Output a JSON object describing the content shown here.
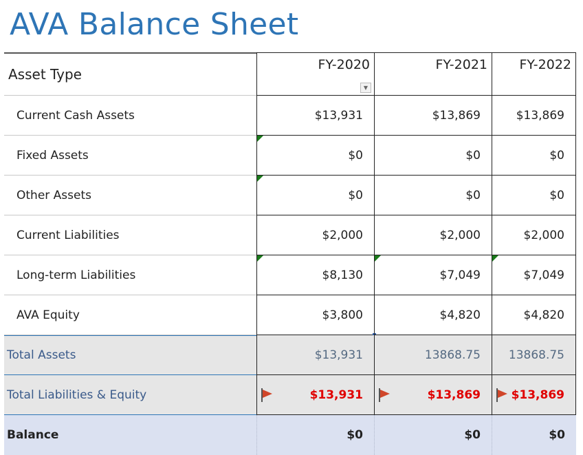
{
  "title": "AVA Balance Sheet",
  "header": {
    "label": "Asset Type",
    "years": [
      "FY-2020",
      "FY-2021",
      "FY-2022"
    ]
  },
  "rows": [
    {
      "label": "Current Cash Assets",
      "values": [
        "$13,931",
        "$13,869",
        "$13,869"
      ]
    },
    {
      "label": "Fixed Assets",
      "values": [
        "$0",
        "$0",
        "$0"
      ]
    },
    {
      "label": "Other Assets",
      "values": [
        "$0",
        "$0",
        "$0"
      ]
    },
    {
      "label": "Current Liabilities",
      "values": [
        "$2,000",
        "$2,000",
        "$2,000"
      ]
    },
    {
      "label": "Long-term Liabilities",
      "values": [
        "$8,130",
        "$7,049",
        "$7,049"
      ]
    },
    {
      "label": "AVA Equity",
      "values": [
        "$3,800",
        "$4,820",
        "$4,820"
      ]
    }
  ],
  "totals": {
    "assets": {
      "label": "Total Assets",
      "values": [
        "$13,931",
        "13868.75",
        "13868.75"
      ]
    },
    "liab_equity": {
      "label": "Total Liabilities & Equity",
      "values": [
        "$13,931",
        "$13,869",
        "$13,869"
      ]
    }
  },
  "balance": {
    "label": "Balance",
    "values": [
      "$0",
      "$0",
      "$0"
    ]
  },
  "colors": {
    "title": "#2E75B6",
    "error_red": "#e00000",
    "total_band": "#e6e6e6",
    "balance_band": "#dbe1f1"
  },
  "icons": {
    "flag": "red-flag-icon",
    "note": "comment-indicator-icon",
    "filter": "dropdown-arrow-icon"
  }
}
